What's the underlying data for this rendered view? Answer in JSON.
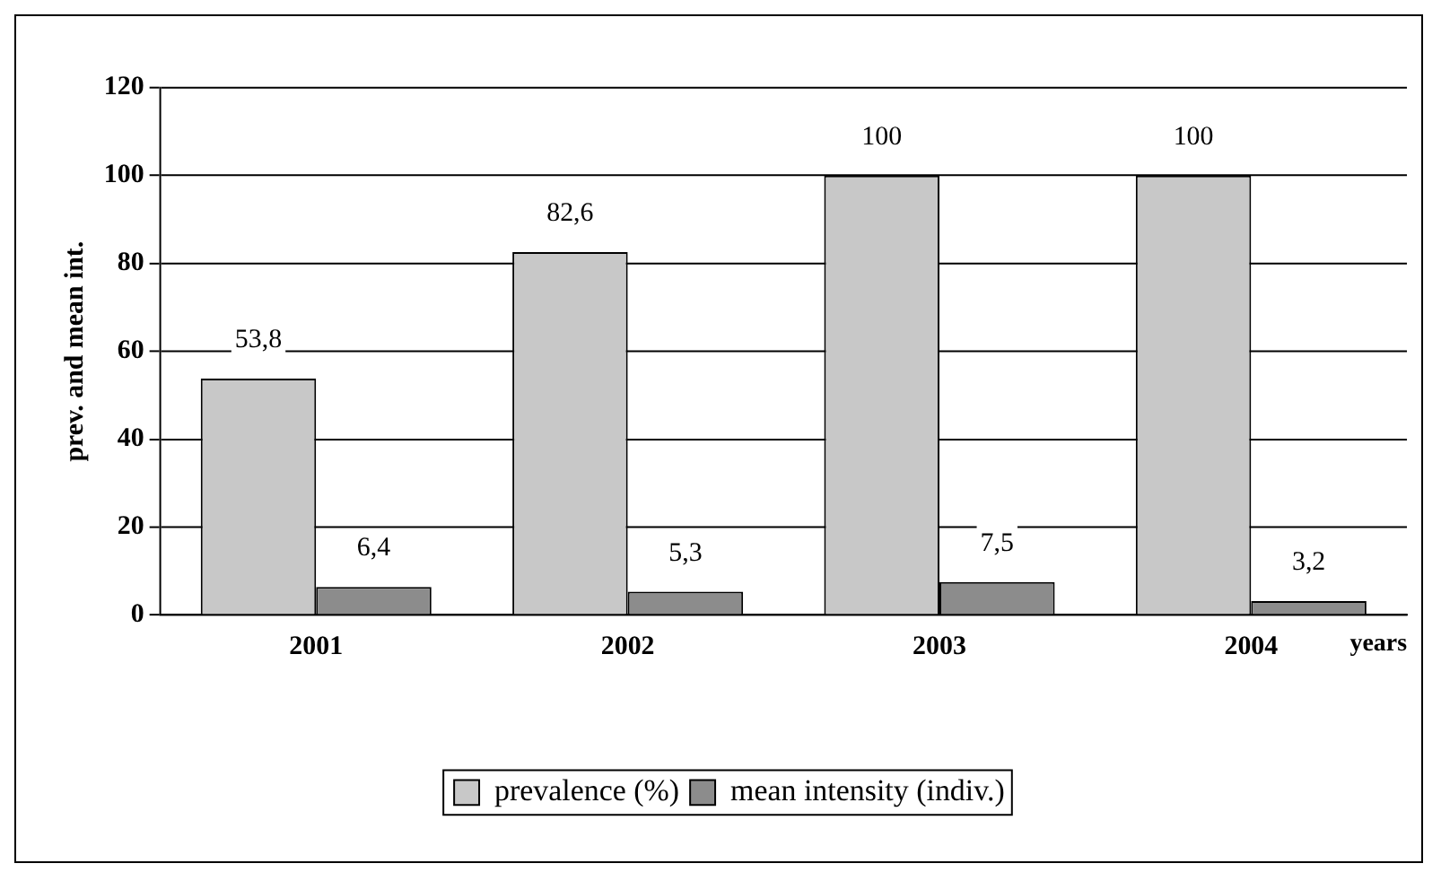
{
  "chart_data": {
    "type": "bar",
    "xlabel": "years",
    "ylabel": "prev. and mean int.",
    "categories": [
      "2001",
      "2002",
      "2003",
      "2004"
    ],
    "series": [
      {
        "name": "prevalence (%)",
        "color": "#c8c8c8",
        "values": [
          53.8,
          82.6,
          100,
          100
        ],
        "value_labels": [
          "53,8",
          "82,6",
          "100",
          "100"
        ]
      },
      {
        "name": "mean intensity (indiv.)",
        "color": "#8c8c8c",
        "values": [
          6.4,
          5.3,
          7.5,
          3.2
        ],
        "value_labels": [
          "6,4",
          "5,3",
          "7,5",
          "3,2"
        ]
      }
    ],
    "ylim": [
      0,
      120
    ],
    "yticks": [
      0,
      20,
      40,
      60,
      80,
      100,
      120
    ],
    "grid": "y",
    "legend": "bottom"
  }
}
